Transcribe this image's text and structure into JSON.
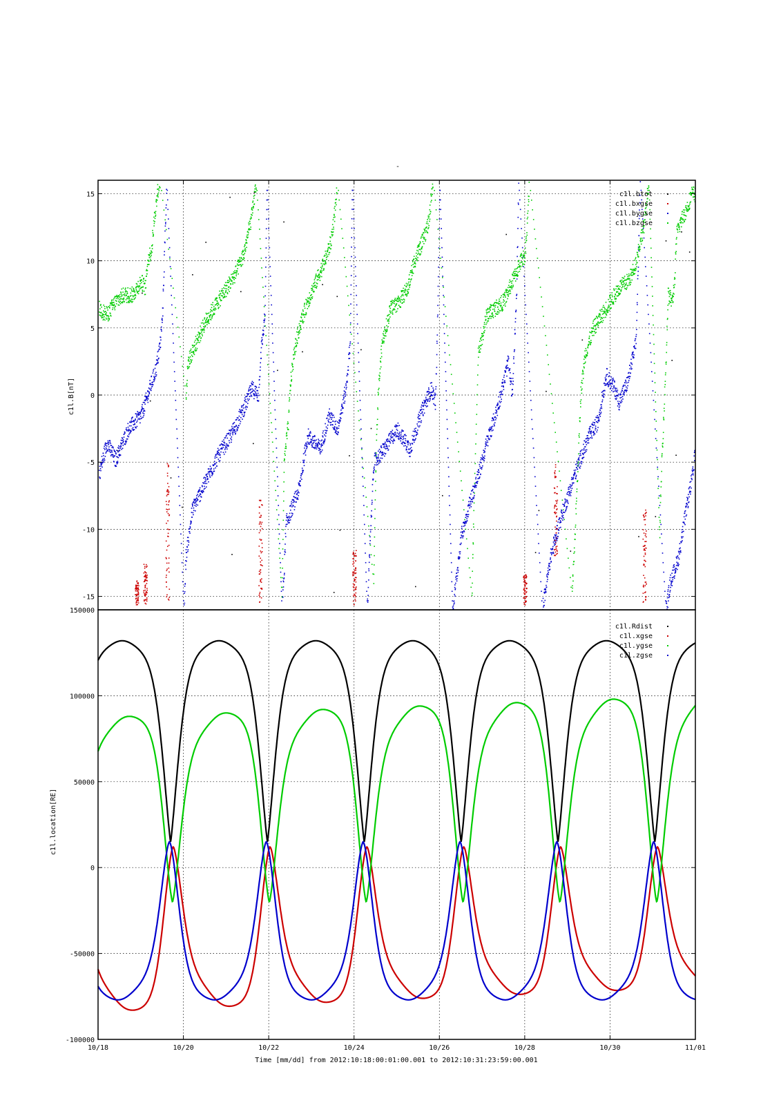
{
  "page_title": "-",
  "time_axis": {
    "ticks": [
      "10/18",
      "10/20",
      "10/22",
      "10/24",
      "10/26",
      "10/28",
      "10/30",
      "11/01"
    ],
    "label": "Time [mm/dd]  from 2012:10:18:00:01:00.001  to  2012:10:31:23:59:00.001"
  },
  "chart_data": [
    {
      "type": "scatter",
      "ylabel": "c1l.B[nT]",
      "xlim_days": [
        0,
        14
      ],
      "ylim": [
        -16,
        16
      ],
      "y_ticks": [
        "15",
        "10",
        "5",
        "0",
        "-5",
        "-10",
        "-15"
      ],
      "y_tick_values": [
        15,
        10,
        5,
        0,
        -5,
        -10,
        -15
      ],
      "grid": true,
      "legend_position": "top-right",
      "series": [
        {
          "name": "c1l.btot",
          "color": "#000000",
          "note": "off-scale (above 16 nT) except isolated points"
        },
        {
          "name": "c1l.bxgse",
          "color": "#cc0000",
          "bursts": [
            [
              0.9,
              -15.6,
              -13.8
            ],
            [
              1.1,
              -15.6,
              -12.5
            ],
            [
              1.62,
              -15.5,
              -5.0
            ],
            [
              3.8,
              -15.5,
              -7.5
            ],
            [
              6.0,
              -15.6,
              -11.5
            ],
            [
              10.0,
              -15.6,
              -13.3
            ],
            [
              10.72,
              -12,
              -5.0
            ],
            [
              12.8,
              -15.5,
              -8.5
            ]
          ]
        },
        {
          "name": "c1l.bygse",
          "color": "#0000cc",
          "polyline": [
            [
              0.0,
              -6.0
            ],
            [
              0.2,
              -3.5
            ],
            [
              0.4,
              -4.8
            ],
            [
              0.7,
              -2.5
            ],
            [
              1.0,
              -1.5
            ],
            [
              1.2,
              0.5
            ],
            [
              1.35,
              2.0
            ],
            [
              1.45,
              4.0
            ],
            [
              1.5,
              6.0
            ],
            [
              1.55,
              11.0
            ],
            [
              1.6,
              16.0
            ],
            [
              2.0,
              -16.0
            ],
            [
              2.05,
              -12.0
            ],
            [
              2.2,
              -8.5
            ],
            [
              2.5,
              -6.5
            ],
            [
              2.8,
              -4.5
            ],
            [
              3.1,
              -3.0
            ],
            [
              3.4,
              -1.0
            ],
            [
              3.6,
              0.5
            ],
            [
              3.75,
              0.0
            ],
            [
              3.8,
              3.0
            ],
            [
              3.9,
              6.0
            ],
            [
              3.95,
              16.0
            ],
            [
              4.3,
              -16.0
            ],
            [
              4.35,
              -13.0
            ],
            [
              4.4,
              -9.5
            ],
            [
              4.7,
              -7.0
            ],
            [
              4.9,
              -3.0
            ],
            [
              5.2,
              -4.0
            ],
            [
              5.4,
              -1.5
            ],
            [
              5.6,
              -2.5
            ],
            [
              5.8,
              0.5
            ],
            [
              5.9,
              4.0
            ],
            [
              5.95,
              16.0
            ],
            [
              6.3,
              -16.0
            ],
            [
              6.35,
              -12.0
            ],
            [
              6.45,
              -5.0
            ],
            [
              6.7,
              -4.0
            ],
            [
              7.0,
              -2.5
            ],
            [
              7.3,
              -4.0
            ],
            [
              7.6,
              -1.0
            ],
            [
              7.8,
              0.5
            ],
            [
              7.9,
              -0.5
            ],
            [
              7.95,
              6.0
            ],
            [
              8.0,
              16.0
            ],
            [
              8.3,
              -16.0
            ],
            [
              8.5,
              -10.5
            ],
            [
              8.7,
              -8.0
            ],
            [
              8.9,
              -6.0
            ],
            [
              9.1,
              -3.5
            ],
            [
              9.3,
              -1.5
            ],
            [
              9.5,
              1.0
            ],
            [
              9.6,
              2.5
            ],
            [
              9.7,
              0.0
            ],
            [
              9.75,
              4.0
            ],
            [
              9.8,
              8.0
            ],
            [
              9.85,
              16.0
            ],
            [
              10.4,
              -16.0
            ],
            [
              10.6,
              -12.0
            ],
            [
              10.8,
              -9.5
            ],
            [
              11.0,
              -7.5
            ],
            [
              11.2,
              -5.5
            ],
            [
              11.5,
              -3.0
            ],
            [
              11.7,
              -2.0
            ],
            [
              11.9,
              1.5
            ],
            [
              12.1,
              0.5
            ],
            [
              12.2,
              -0.5
            ],
            [
              12.4,
              1.0
            ],
            [
              12.6,
              4.0
            ],
            [
              12.65,
              10.0
            ],
            [
              12.7,
              16.0
            ],
            [
              13.3,
              -16.0
            ],
            [
              13.4,
              -14.0
            ],
            [
              13.6,
              -12.0
            ],
            [
              13.7,
              -10.0
            ],
            [
              13.8,
              -8.0
            ],
            [
              13.95,
              -5.5
            ],
            [
              14.0,
              -3.0
            ]
          ]
        },
        {
          "name": "c1l.bzgse",
          "color": "#00cc00",
          "polyline": [
            [
              0.0,
              6.5
            ],
            [
              0.2,
              6.0
            ],
            [
              0.4,
              7.0
            ],
            [
              0.6,
              7.5
            ],
            [
              0.8,
              7.5
            ],
            [
              1.0,
              8.5
            ],
            [
              1.1,
              8.0
            ],
            [
              1.15,
              10.0
            ],
            [
              1.25,
              11.0
            ],
            [
              1.3,
              13.0
            ],
            [
              1.4,
              15.5
            ],
            [
              1.45,
              16.0
            ],
            [
              2.05,
              0.0
            ],
            [
              2.1,
              2.5
            ],
            [
              2.3,
              4.0
            ],
            [
              2.5,
              5.5
            ],
            [
              2.7,
              6.5
            ],
            [
              2.9,
              7.5
            ],
            [
              3.2,
              9.0
            ],
            [
              3.4,
              10.5
            ],
            [
              3.5,
              12.0
            ],
            [
              3.6,
              13.5
            ],
            [
              3.7,
              16.0
            ],
            [
              4.3,
              -15.0
            ],
            [
              4.35,
              -5.0
            ],
            [
              4.45,
              -2.0
            ],
            [
              4.5,
              1.0
            ],
            [
              4.6,
              3.5
            ],
            [
              4.7,
              5.0
            ],
            [
              4.9,
              7.0
            ],
            [
              5.1,
              8.5
            ],
            [
              5.3,
              10.0
            ],
            [
              5.45,
              11.5
            ],
            [
              5.55,
              14.0
            ],
            [
              5.6,
              16.0
            ],
            [
              6.45,
              -14.0
            ],
            [
              6.5,
              -5.0
            ],
            [
              6.55,
              0.0
            ],
            [
              6.65,
              4.0
            ],
            [
              6.85,
              6.5
            ],
            [
              7.05,
              7.0
            ],
            [
              7.25,
              8.0
            ],
            [
              7.4,
              10.0
            ],
            [
              7.6,
              11.5
            ],
            [
              7.75,
              13.0
            ],
            [
              7.8,
              15.0
            ],
            [
              7.85,
              16.0
            ],
            [
              8.75,
              -15.0
            ],
            [
              8.8,
              -8.0
            ],
            [
              8.9,
              3.0
            ],
            [
              9.1,
              6.0
            ],
            [
              9.3,
              6.5
            ],
            [
              9.5,
              7.0
            ],
            [
              9.7,
              8.5
            ],
            [
              9.9,
              10.0
            ],
            [
              10.0,
              10.5
            ],
            [
              10.05,
              13.0
            ],
            [
              10.1,
              16.0
            ],
            [
              11.1,
              -15.0
            ],
            [
              11.2,
              -8.0
            ],
            [
              11.3,
              0.0
            ],
            [
              11.4,
              3.0
            ],
            [
              11.6,
              5.0
            ],
            [
              11.8,
              6.0
            ],
            [
              12.0,
              7.0
            ],
            [
              12.2,
              8.0
            ],
            [
              12.4,
              8.5
            ],
            [
              12.5,
              9.0
            ],
            [
              12.6,
              10.0
            ],
            [
              12.8,
              13.0
            ],
            [
              12.9,
              16.0
            ],
            [
              13.15,
              -10.5
            ],
            [
              13.2,
              -5.0
            ],
            [
              13.3,
              2.5
            ],
            [
              13.35,
              7.5
            ],
            [
              13.45,
              7.0
            ],
            [
              13.5,
              8.5
            ],
            [
              13.55,
              12.0
            ],
            [
              13.65,
              13.0
            ],
            [
              13.8,
              14.0
            ],
            [
              13.9,
              15.0
            ],
            [
              14.0,
              15.0
            ]
          ]
        }
      ]
    },
    {
      "type": "line",
      "ylabel": "c1l.location[RE]",
      "xlim_days": [
        0,
        14
      ],
      "ylim": [
        -100000,
        150000
      ],
      "y_ticks": [
        "150000",
        "100000",
        "50000",
        "0",
        "-50000",
        "-100000"
      ],
      "y_tick_values": [
        150000,
        100000,
        50000,
        0,
        -50000,
        -100000
      ],
      "grid": true,
      "legend_position": "top-right",
      "series": [
        {
          "name": "c1l.Rdist",
          "color": "#000000",
          "period_days": 2.27,
          "perigee_day": 1.7,
          "min": 15000,
          "max": 132000
        },
        {
          "name": "c1l.xgse",
          "color": "#cc0000",
          "period_days": 2.27,
          "perigee_day": 1.7,
          "min": -83000,
          "max": 12000,
          "min_drift_per_orbit": 2300
        },
        {
          "name": "c1l.ygse",
          "color": "#00cc00",
          "period_days": 2.27,
          "perigee_day": 1.7,
          "min": -20000,
          "max": 88000,
          "max_drift_per_orbit": 2000
        },
        {
          "name": "c1l.zgse",
          "color": "#0000cc",
          "period_days": 2.27,
          "perigee_day": 1.7,
          "min": -77000,
          "max": 15000
        }
      ]
    }
  ]
}
